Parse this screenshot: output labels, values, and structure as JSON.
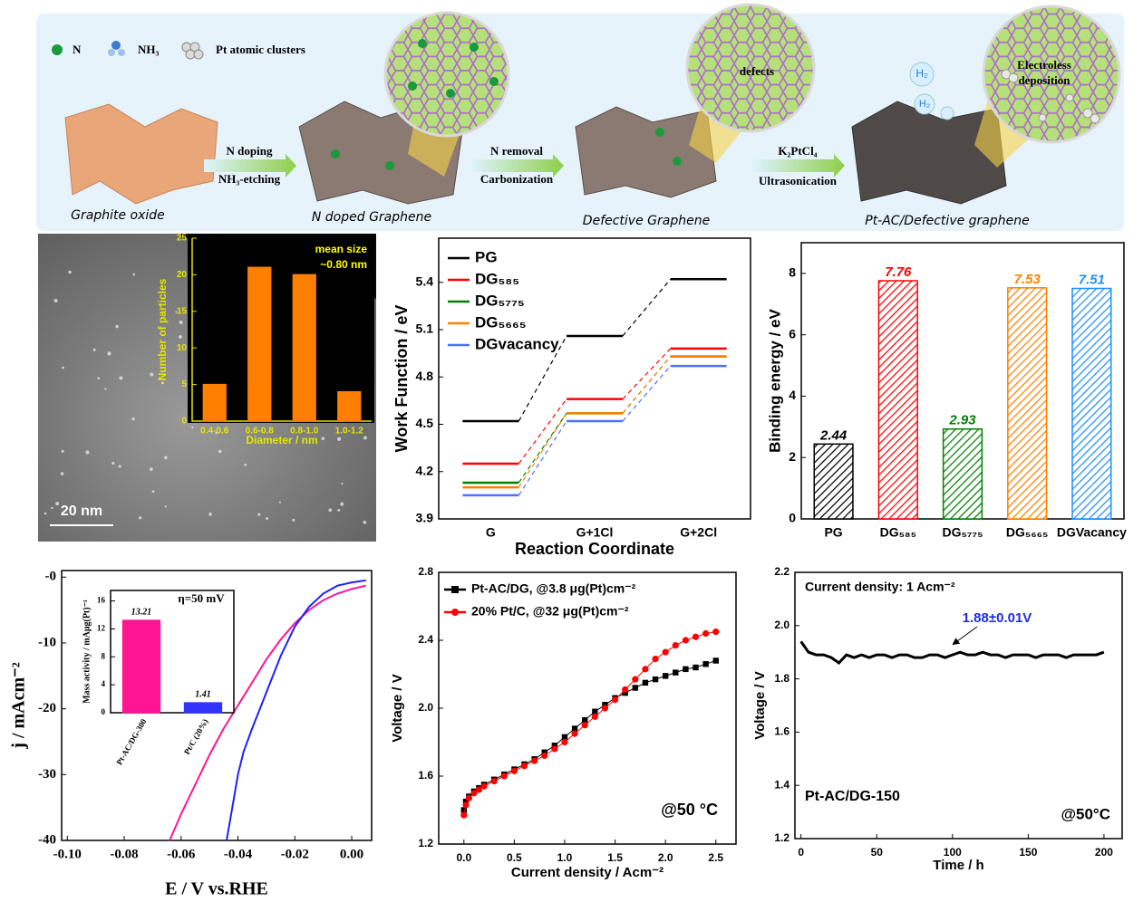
{
  "schematic": {
    "legend": [
      "N",
      "NH₃",
      "Pt atomic clusters"
    ],
    "steps": [
      {
        "top": "N doping",
        "bottom": "NH₃-etching"
      },
      {
        "top": "N removal",
        "bottom": "Carbonization"
      },
      {
        "top": "K₂PtCl₄",
        "bottom": "Ultrasonication"
      }
    ],
    "stages": [
      "Graphite oxide",
      "N doped Graphene",
      "Defective Graphene",
      "Pt-AC/Defective graphene"
    ],
    "callouts": [
      "defects",
      "Electroless",
      "deposition"
    ],
    "gas": [
      "H₂",
      "H₂"
    ]
  },
  "chart_data": [
    {
      "type": "bar",
      "categories": [
        "0.4-0.6",
        "0.6-0.8",
        "0.8-1.0",
        "1.0-1.2"
      ],
      "values": [
        5,
        21,
        20,
        4
      ],
      "color": "#ff7f00",
      "axis_color": "#e6e600",
      "ylim": [
        0,
        25
      ],
      "yticks": [
        0,
        5,
        10,
        15,
        20,
        25
      ],
      "xlabel": "Diameter / nm",
      "ylabel": "Number of particles",
      "annotations": [
        "mean size",
        "~0.80 nm",
        "20 nm"
      ]
    },
    {
      "type": "step",
      "categories": [
        "G",
        "G+1Cl",
        "G+2Cl"
      ],
      "xlabel": "Reaction Coordinate",
      "ylabel": "Work Function / eV",
      "ylim": [
        3.9,
        5.68
      ],
      "yticks": [
        3.9,
        4.2,
        4.5,
        4.8,
        5.1,
        5.4
      ],
      "legend": "upper left",
      "series": [
        {
          "name": "PG",
          "color": "#000000",
          "values": [
            4.52,
            5.06,
            5.42
          ]
        },
        {
          "name": "DG₅₈₅",
          "color": "#ff0000",
          "values": [
            4.25,
            4.66,
            4.98
          ]
        },
        {
          "name": "DG₅₇₇₅",
          "color": "#008000",
          "values": [
            4.13,
            4.57,
            4.93
          ]
        },
        {
          "name": "DG₅₆₆₅",
          "color": "#ff8000",
          "values": [
            4.1,
            4.57,
            4.93
          ]
        },
        {
          "name": "DGvacancy",
          "color": "#4f6fff",
          "values": [
            4.05,
            4.52,
            4.87
          ]
        }
      ]
    },
    {
      "type": "bar",
      "categories": [
        "PG",
        "DG₅₈₅",
        "DG₅₇₇₅",
        "DG₅₆₆₅",
        "DGVacancy"
      ],
      "values": [
        2.44,
        7.76,
        2.93,
        7.53,
        7.51
      ],
      "colors": [
        "#000000",
        "#ff0000",
        "#008000",
        "#ff8000",
        "#1e90ff"
      ],
      "hatch": true,
      "show_values": true,
      "ylabel": "Binding energy / eV",
      "ylim": [
        0,
        9
      ],
      "yticks": [
        0,
        2,
        4,
        6,
        8
      ]
    },
    {
      "type": "line",
      "xlabel": "E / V vs.RHE",
      "ylabel": "j / mAcm⁻²",
      "xlim": [
        -0.102,
        0.007
      ],
      "xticks": [
        {
          "value": -0.1,
          "label": "-0.10"
        },
        {
          "value": -0.08,
          "label": "-0.08"
        },
        {
          "value": -0.06,
          "label": "-0.06"
        },
        {
          "value": -0.04,
          "label": "-0.04"
        },
        {
          "value": -0.02,
          "label": "-0.02"
        },
        {
          "value": 0,
          "label": "0.00"
        }
      ],
      "ylim": [
        -40,
        1
      ],
      "yticks": [
        -40,
        -30,
        -20,
        -10,
        {
          "value": 0,
          "label": "-0"
        }
      ],
      "series": [
        {
          "color": "#ff1493",
          "x": [
            -0.064,
            -0.06,
            -0.055,
            -0.05,
            -0.045,
            -0.04,
            -0.035,
            -0.03,
            -0.025,
            -0.02,
            -0.015,
            -0.01,
            -0.005,
            0,
            0.005
          ],
          "values": [
            -40,
            -36,
            -31.5,
            -27,
            -23,
            -19.5,
            -16,
            -12.5,
            -9.5,
            -7,
            -5,
            -3.5,
            -2.5,
            -1.8,
            -1.3
          ]
        },
        {
          "color": "#2020ff",
          "x": [
            -0.044,
            -0.042,
            -0.04,
            -0.038,
            -0.035,
            -0.03,
            -0.025,
            -0.02,
            -0.015,
            -0.01,
            -0.005,
            0,
            0.005
          ],
          "values": [
            -40,
            -35,
            -30,
            -26.5,
            -23,
            -17.5,
            -12,
            -7.5,
            -4.5,
            -2.5,
            -1.3,
            -0.8,
            -0.5
          ]
        }
      ]
    },
    {
      "type": "bar",
      "categories": [
        "Pt-AC/DG-300",
        "Pt/C (20%)"
      ],
      "values": [
        13.21,
        1.41
      ],
      "colors": [
        "#ff1493",
        "#3333ff"
      ],
      "show_values": true,
      "value_label_color": "#000000",
      "ylabel": "Mass activity / mAμg(Pt)⁻¹",
      "ylim": [
        0,
        17.5
      ],
      "yticks": [
        0,
        4,
        8,
        12,
        16
      ],
      "annotations": [
        "η=50 mV"
      ]
    },
    {
      "type": "line",
      "xlabel": "Current density / Acm⁻²",
      "ylabel": "Voltage / V",
      "xlim": [
        -0.25,
        2.7
      ],
      "xticks": [
        {
          "value": 0,
          "label": "0.0"
        },
        0.5,
        {
          "value": 1,
          "label": "1.0"
        },
        1.5,
        {
          "value": 2,
          "label": "2.0"
        },
        2.5
      ],
      "ylim": [
        1.2,
        2.8
      ],
      "yticks": [
        1.2,
        1.6,
        {
          "value": 2,
          "label": "2.0"
        },
        2.4,
        2.8
      ],
      "legend": "upper left",
      "x": [
        0,
        0.02,
        0.05,
        0.1,
        0.15,
        0.2,
        0.3,
        0.4,
        0.5,
        0.6,
        0.7,
        0.8,
        0.9,
        1,
        1.1,
        1.2,
        1.3,
        1.4,
        1.5,
        1.6,
        1.7,
        1.8,
        1.9,
        2,
        2.1,
        2.2,
        2.3,
        2.4,
        2.5
      ],
      "series": [
        {
          "name": "Pt-AC/DG, @3.8 μg(Pt)cm⁻²",
          "color": "#000000",
          "marker": "square",
          "values": [
            1.4,
            1.45,
            1.48,
            1.51,
            1.53,
            1.55,
            1.58,
            1.61,
            1.64,
            1.67,
            1.7,
            1.74,
            1.78,
            1.83,
            1.88,
            1.93,
            1.98,
            2.02,
            2.06,
            2.09,
            2.12,
            2.15,
            2.17,
            2.19,
            2.21,
            2.23,
            2.24,
            2.26,
            2.28
          ]
        },
        {
          "name": "20% Pt/C, @32 μg(Pt)cm⁻²",
          "color": "#ff0000",
          "marker": "circle",
          "values": [
            1.37,
            1.43,
            1.47,
            1.5,
            1.52,
            1.54,
            1.57,
            1.6,
            1.63,
            1.66,
            1.69,
            1.72,
            1.76,
            1.8,
            1.85,
            1.9,
            1.95,
            2,
            2.05,
            2.11,
            2.17,
            2.23,
            2.29,
            2.33,
            2.37,
            2.4,
            2.42,
            2.44,
            2.45
          ]
        }
      ],
      "annotations": [
        "@50 °C"
      ]
    },
    {
      "type": "line",
      "xlabel": "Time / h",
      "ylabel": "Voltage / V",
      "xlim": [
        -4,
        212
      ],
      "xticks": [
        0,
        50,
        100,
        150,
        200
      ],
      "ylim": [
        1.2,
        2.2
      ],
      "yticks": [
        1.2,
        1.4,
        1.6,
        1.8,
        {
          "value": 2,
          "label": "2.0"
        },
        2.2
      ],
      "x": [
        0,
        5,
        10,
        15,
        20,
        25,
        30,
        35,
        40,
        45,
        50,
        55,
        60,
        65,
        70,
        75,
        80,
        85,
        90,
        95,
        100,
        105,
        110,
        115,
        120,
        125,
        130,
        135,
        140,
        145,
        150,
        155,
        160,
        165,
        170,
        175,
        180,
        185,
        190,
        195,
        200
      ],
      "series": [
        {
          "color": "#000000",
          "values": [
            1.94,
            1.9,
            1.89,
            1.89,
            1.88,
            1.86,
            1.89,
            1.88,
            1.89,
            1.88,
            1.89,
            1.89,
            1.88,
            1.89,
            1.89,
            1.88,
            1.88,
            1.89,
            1.89,
            1.88,
            1.89,
            1.9,
            1.89,
            1.89,
            1.9,
            1.89,
            1.89,
            1.88,
            1.89,
            1.89,
            1.89,
            1.88,
            1.89,
            1.89,
            1.89,
            1.88,
            1.89,
            1.89,
            1.89,
            1.89,
            1.9
          ]
        }
      ],
      "annotations": [
        "Current density: 1 Acm⁻²",
        "1.88±0.01V",
        "Pt-AC/DG-150",
        "@50°C"
      ]
    }
  ]
}
